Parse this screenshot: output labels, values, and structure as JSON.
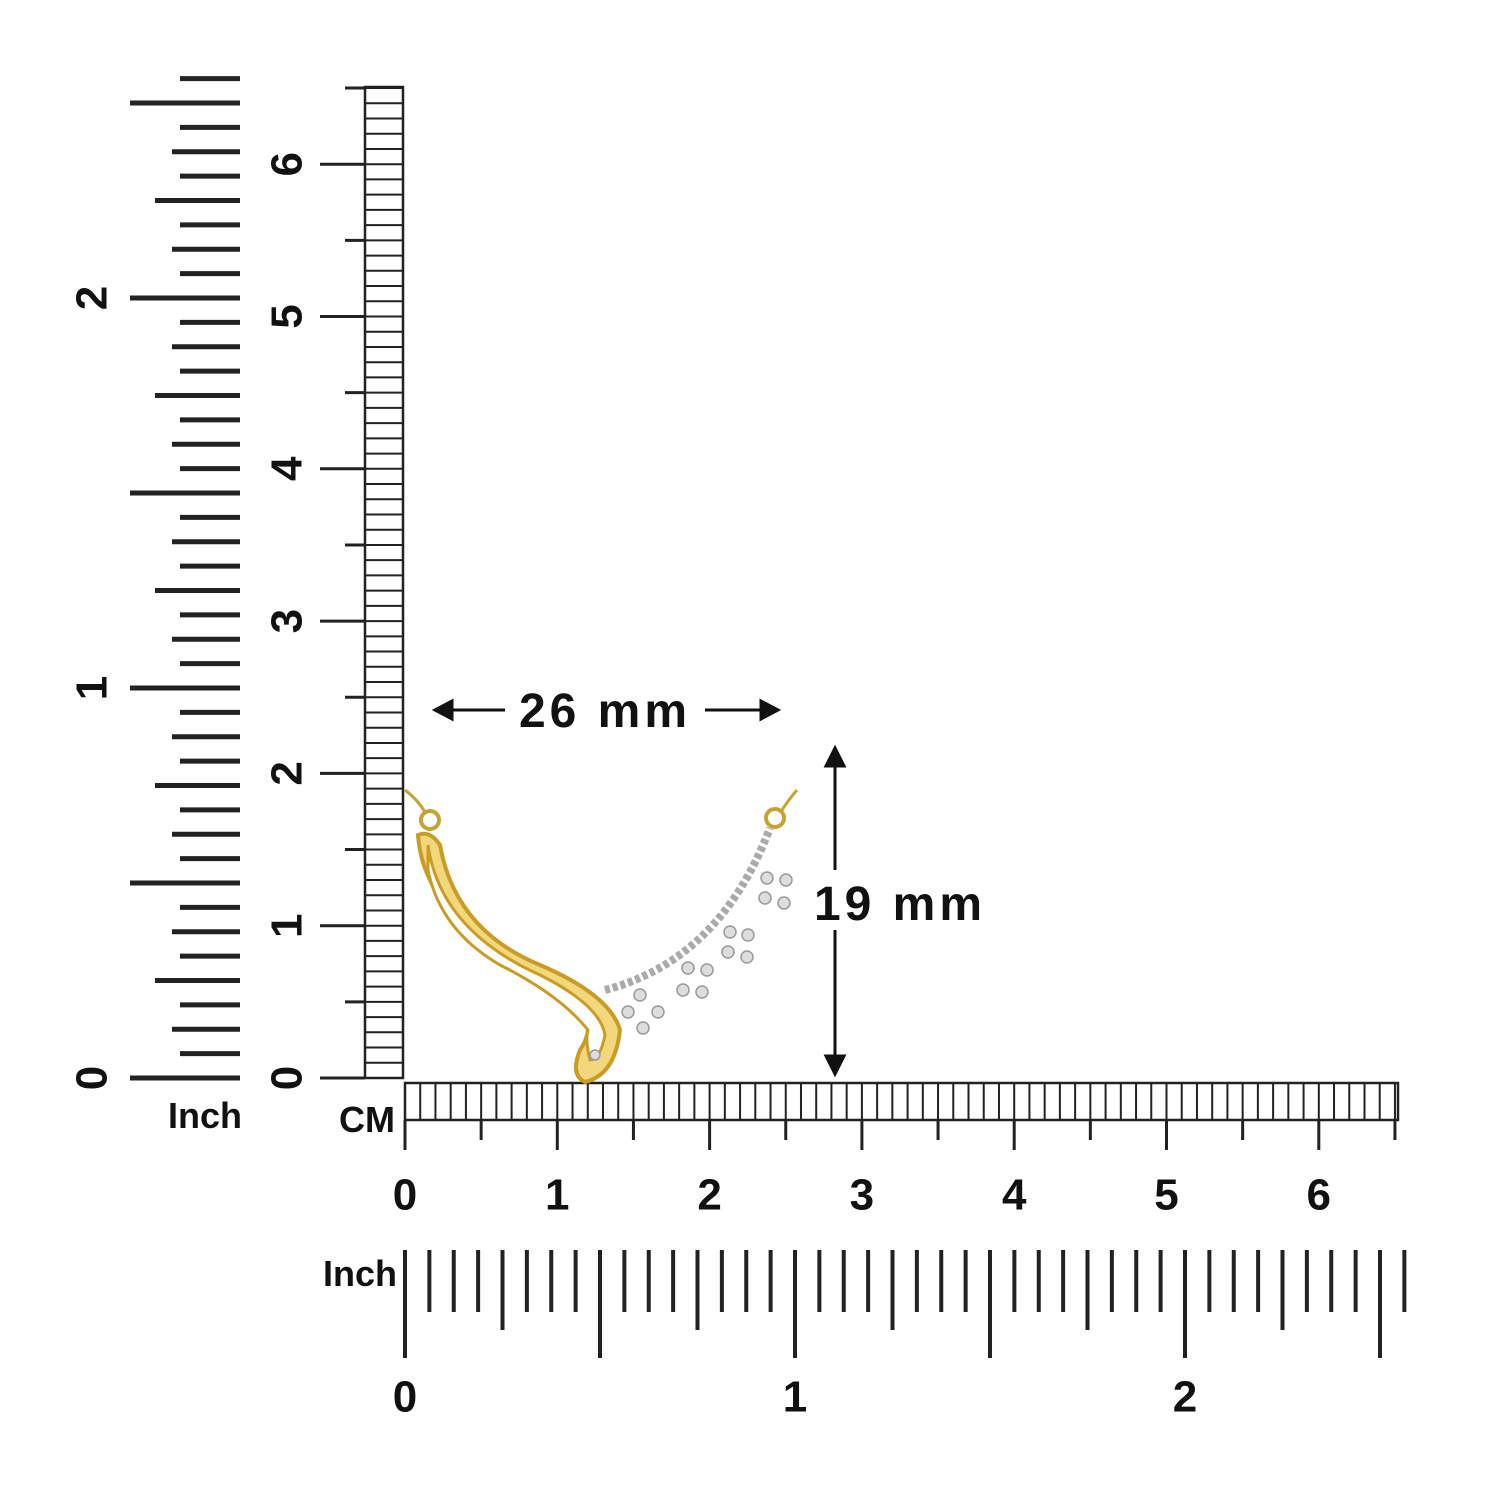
{
  "dimensions": {
    "width": "26 mm",
    "height": "19 mm"
  },
  "rulers": {
    "vertical_cm": {
      "labels": [
        "0",
        "1",
        "2",
        "3",
        "4",
        "5",
        "6"
      ]
    },
    "vertical_inch": {
      "unit": "Inch",
      "labels": [
        "0",
        "1",
        "2"
      ]
    },
    "horizontal_cm": {
      "unit": "CM",
      "labels": [
        "0",
        "1",
        "2",
        "3",
        "4",
        "5",
        "6"
      ]
    },
    "horizontal_inch": {
      "unit": "Inch",
      "labels": [
        "0",
        "1",
        "2"
      ]
    }
  }
}
